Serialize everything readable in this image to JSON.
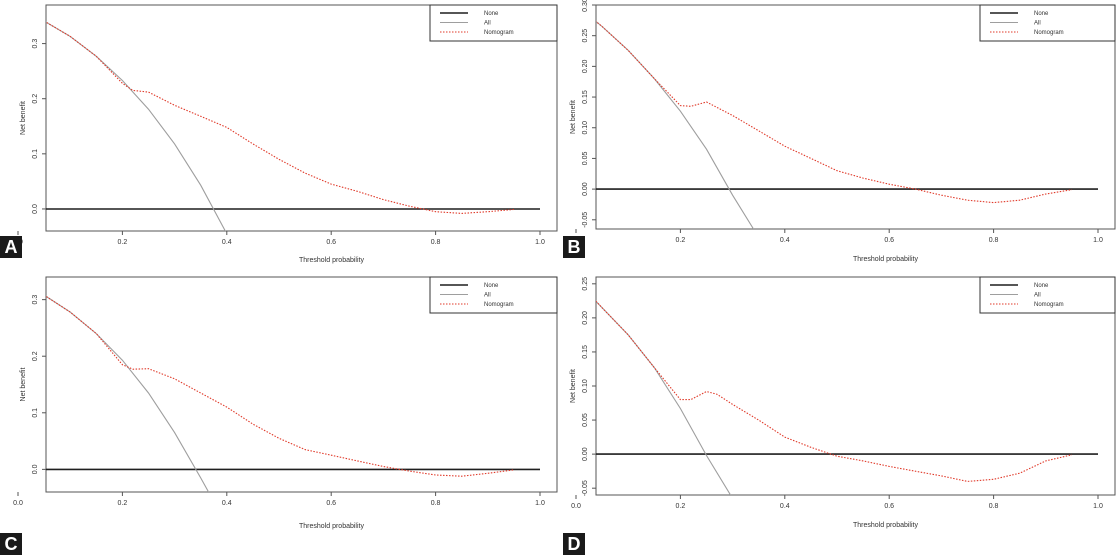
{
  "colors": {
    "none": "#1f1f1f",
    "all": "#9e9e9e",
    "nomogram": "#e03a2a"
  },
  "chart_data": [
    {
      "panel": "A",
      "type": "line",
      "xlabel": "Threshold probability",
      "ylabel": "Net benefit",
      "xlim": [
        0,
        1.0
      ],
      "ylim": [
        -0.04,
        0.37
      ],
      "xticks": [
        0.0,
        0.2,
        0.4,
        0.6,
        0.8,
        1.0
      ],
      "xtick_labels": [
        "0.0",
        "0.2",
        "0.4",
        "0.6",
        "0.8",
        "1.0"
      ],
      "yticks": [
        0.0,
        0.1,
        0.2,
        0.3
      ],
      "ytick_labels": [
        "0.0",
        "0.1",
        "0.2",
        "0.3"
      ],
      "legend": {
        "position": "top-right",
        "entries": [
          "None",
          "All",
          "Nomogram"
        ]
      },
      "series": [
        {
          "name": "None",
          "style": "solid",
          "x": [
            0.01,
            1.0
          ],
          "y": [
            0,
            0
          ]
        },
        {
          "name": "All",
          "style": "solid",
          "x": [
            0.01,
            0.05,
            0.1,
            0.15,
            0.2,
            0.25,
            0.3,
            0.35,
            0.4,
            0.41
          ],
          "y": [
            0.362,
            0.341,
            0.313,
            0.277,
            0.233,
            0.181,
            0.118,
            0.043,
            -0.045,
            -0.065
          ]
        },
        {
          "name": "Nomogram",
          "style": "dotted",
          "x": [
            0.01,
            0.05,
            0.1,
            0.15,
            0.2,
            0.22,
            0.25,
            0.3,
            0.35,
            0.4,
            0.45,
            0.5,
            0.55,
            0.6,
            0.65,
            0.7,
            0.75,
            0.8,
            0.85,
            0.9,
            0.95
          ],
          "y": [
            0.362,
            0.341,
            0.313,
            0.277,
            0.228,
            0.215,
            0.212,
            0.188,
            0.168,
            0.148,
            0.118,
            0.09,
            0.065,
            0.045,
            0.032,
            0.017,
            0.005,
            -0.005,
            -0.008,
            -0.005,
            -0.001
          ]
        }
      ]
    },
    {
      "panel": "B",
      "type": "line",
      "xlabel": "Threshold probability",
      "ylabel": "Net benefit",
      "xlim": [
        0,
        1.0
      ],
      "ylim": [
        -0.065,
        0.3
      ],
      "xticks": [
        0.0,
        0.2,
        0.4,
        0.6,
        0.8,
        1.0
      ],
      "xtick_labels": [
        "0.0",
        "0.2",
        "0.4",
        "0.6",
        "0.8",
        "1.0"
      ],
      "yticks": [
        -0.05,
        0.0,
        0.05,
        0.1,
        0.15,
        0.2,
        0.25,
        0.3
      ],
      "ytick_labels": [
        "-0.05",
        "0.00",
        "0.05",
        "0.10",
        "0.15",
        "0.20",
        "0.25",
        "0.30"
      ],
      "legend": {
        "position": "top-right",
        "entries": [
          "None",
          "All",
          "Nomogram"
        ]
      },
      "series": [
        {
          "name": "None",
          "style": "solid",
          "x": [
            0.01,
            1.0
          ],
          "y": [
            0,
            0
          ]
        },
        {
          "name": "All",
          "style": "solid",
          "x": [
            0.01,
            0.05,
            0.1,
            0.15,
            0.2,
            0.25,
            0.3,
            0.34
          ],
          "y": [
            0.293,
            0.265,
            0.226,
            0.18,
            0.127,
            0.065,
            -0.01,
            -0.065
          ]
        },
        {
          "name": "Nomogram",
          "style": "dotted",
          "x": [
            0.01,
            0.05,
            0.1,
            0.15,
            0.2,
            0.22,
            0.25,
            0.3,
            0.35,
            0.4,
            0.45,
            0.5,
            0.55,
            0.6,
            0.65,
            0.7,
            0.75,
            0.8,
            0.85,
            0.9,
            0.95
          ],
          "y": [
            0.293,
            0.265,
            0.226,
            0.18,
            0.136,
            0.135,
            0.142,
            0.12,
            0.095,
            0.07,
            0.05,
            0.03,
            0.018,
            0.008,
            0.0,
            -0.01,
            -0.018,
            -0.022,
            -0.018,
            -0.008,
            -0.001
          ]
        }
      ]
    },
    {
      "panel": "C",
      "type": "line",
      "xlabel": "Threshold probability",
      "ylabel": "Net benefit",
      "xlim": [
        0,
        1.0
      ],
      "ylim": [
        -0.04,
        0.34
      ],
      "xticks": [
        0.0,
        0.2,
        0.4,
        0.6,
        0.8,
        1.0
      ],
      "xtick_labels": [
        "0.0",
        "0.2",
        "0.4",
        "0.6",
        "0.8",
        "1.0"
      ],
      "yticks": [
        0.0,
        0.1,
        0.2,
        0.3
      ],
      "ytick_labels": [
        "0.0",
        "0.1",
        "0.2",
        "0.3"
      ],
      "legend": {
        "position": "top-right",
        "entries": [
          "None",
          "All",
          "Nomogram"
        ]
      },
      "series": [
        {
          "name": "None",
          "style": "solid",
          "x": [
            0.01,
            1.0
          ],
          "y": [
            0,
            0
          ]
        },
        {
          "name": "All",
          "style": "solid",
          "x": [
            0.01,
            0.05,
            0.1,
            0.15,
            0.2,
            0.25,
            0.3,
            0.35,
            0.38
          ],
          "y": [
            0.33,
            0.308,
            0.278,
            0.24,
            0.193,
            0.135,
            0.065,
            -0.015,
            -0.065
          ]
        },
        {
          "name": "Nomogram",
          "style": "dotted",
          "x": [
            0.01,
            0.05,
            0.1,
            0.15,
            0.2,
            0.22,
            0.25,
            0.3,
            0.35,
            0.4,
            0.45,
            0.5,
            0.55,
            0.6,
            0.65,
            0.7,
            0.75,
            0.8,
            0.85,
            0.9,
            0.95
          ],
          "y": [
            0.33,
            0.308,
            0.278,
            0.24,
            0.185,
            0.177,
            0.178,
            0.16,
            0.135,
            0.11,
            0.08,
            0.055,
            0.035,
            0.025,
            0.015,
            0.005,
            -0.003,
            -0.01,
            -0.012,
            -0.007,
            -0.001
          ]
        }
      ]
    },
    {
      "panel": "D",
      "type": "line",
      "xlabel": "Threshold probability",
      "ylabel": "Net benefit",
      "xlim": [
        0,
        1.0
      ],
      "ylim": [
        -0.06,
        0.26
      ],
      "xticks": [
        0.0,
        0.2,
        0.4,
        0.6,
        0.8,
        1.0
      ],
      "xtick_labels": [
        "0.0",
        "0.2",
        "0.4",
        "0.6",
        "0.8",
        "1.0"
      ],
      "yticks": [
        -0.05,
        0.0,
        0.05,
        0.1,
        0.15,
        0.2,
        0.25
      ],
      "ytick_labels": [
        "-0.05",
        "0.00",
        "0.05",
        "0.10",
        "0.15",
        "0.20",
        "0.25"
      ],
      "legend": {
        "position": "top-right",
        "entries": [
          "None",
          "All",
          "Nomogram"
        ]
      },
      "series": [
        {
          "name": "None",
          "style": "solid",
          "x": [
            0.01,
            1.0
          ],
          "y": [
            0,
            0
          ]
        },
        {
          "name": "All",
          "style": "solid",
          "x": [
            0.01,
            0.05,
            0.1,
            0.15,
            0.2,
            0.25,
            0.3
          ],
          "y": [
            0.247,
            0.215,
            0.175,
            0.127,
            0.067,
            -0.002,
            -0.065
          ]
        },
        {
          "name": "Nomogram",
          "style": "dotted",
          "x": [
            0.01,
            0.05,
            0.1,
            0.15,
            0.2,
            0.22,
            0.25,
            0.27,
            0.3,
            0.35,
            0.4,
            0.45,
            0.5,
            0.55,
            0.6,
            0.65,
            0.7,
            0.75,
            0.8,
            0.85,
            0.9,
            0.95
          ],
          "y": [
            0.247,
            0.215,
            0.175,
            0.127,
            0.08,
            0.08,
            0.092,
            0.088,
            0.073,
            0.05,
            0.025,
            0.01,
            -0.003,
            -0.01,
            -0.018,
            -0.025,
            -0.032,
            -0.04,
            -0.037,
            -0.028,
            -0.01,
            -0.001
          ]
        }
      ]
    }
  ]
}
